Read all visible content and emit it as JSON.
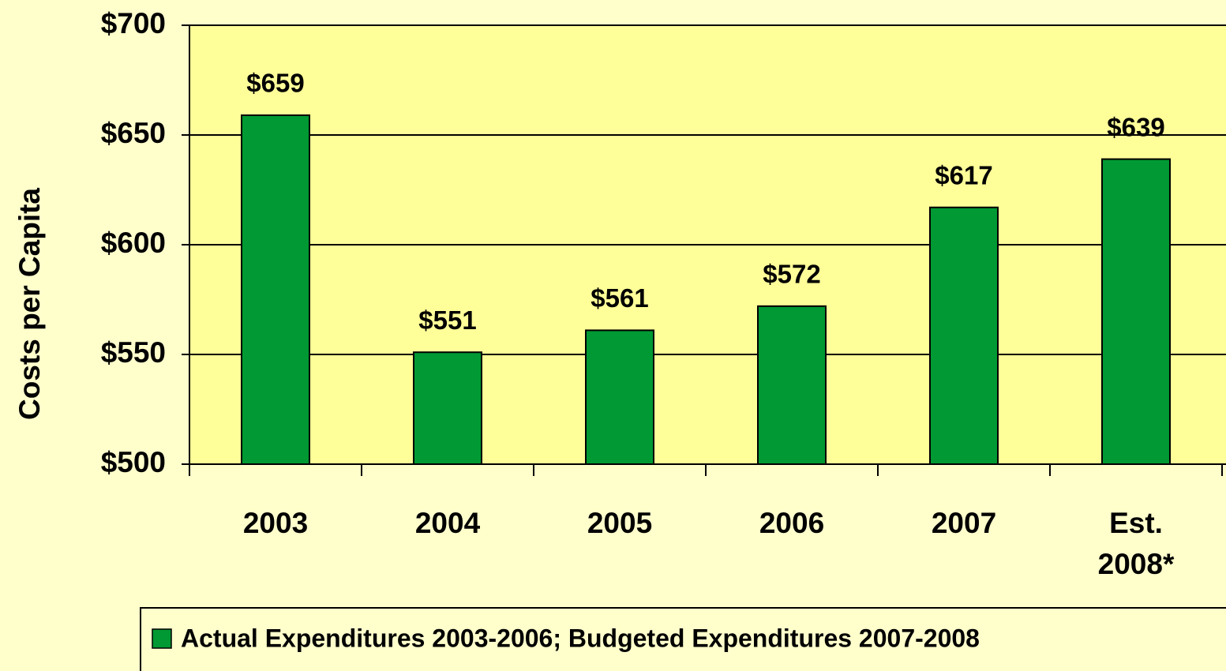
{
  "chart_data": {
    "type": "bar",
    "y_label": "Costs per Capita",
    "categories": [
      "2003",
      "2004",
      "2005",
      "2006",
      "2007",
      "Est. 2008*"
    ],
    "series": [
      {
        "name": "Actual Expenditures 2003-2006; Budgeted Expenditures 2007-2008",
        "color": "#009933",
        "values": [
          659,
          551,
          561,
          572,
          617,
          639
        ],
        "value_labels": [
          "$659",
          "$551",
          "$561",
          "$572",
          "$617",
          "$639"
        ]
      }
    ],
    "ylim": [
      500,
      700
    ],
    "yticks": [
      {
        "value": 500,
        "label": "$500"
      },
      {
        "value": 550,
        "label": "$550"
      },
      {
        "value": 600,
        "label": "$600"
      },
      {
        "value": 650,
        "label": "$650"
      },
      {
        "value": 700,
        "label": "$700"
      }
    ],
    "grid": true,
    "legend": "bottom"
  }
}
